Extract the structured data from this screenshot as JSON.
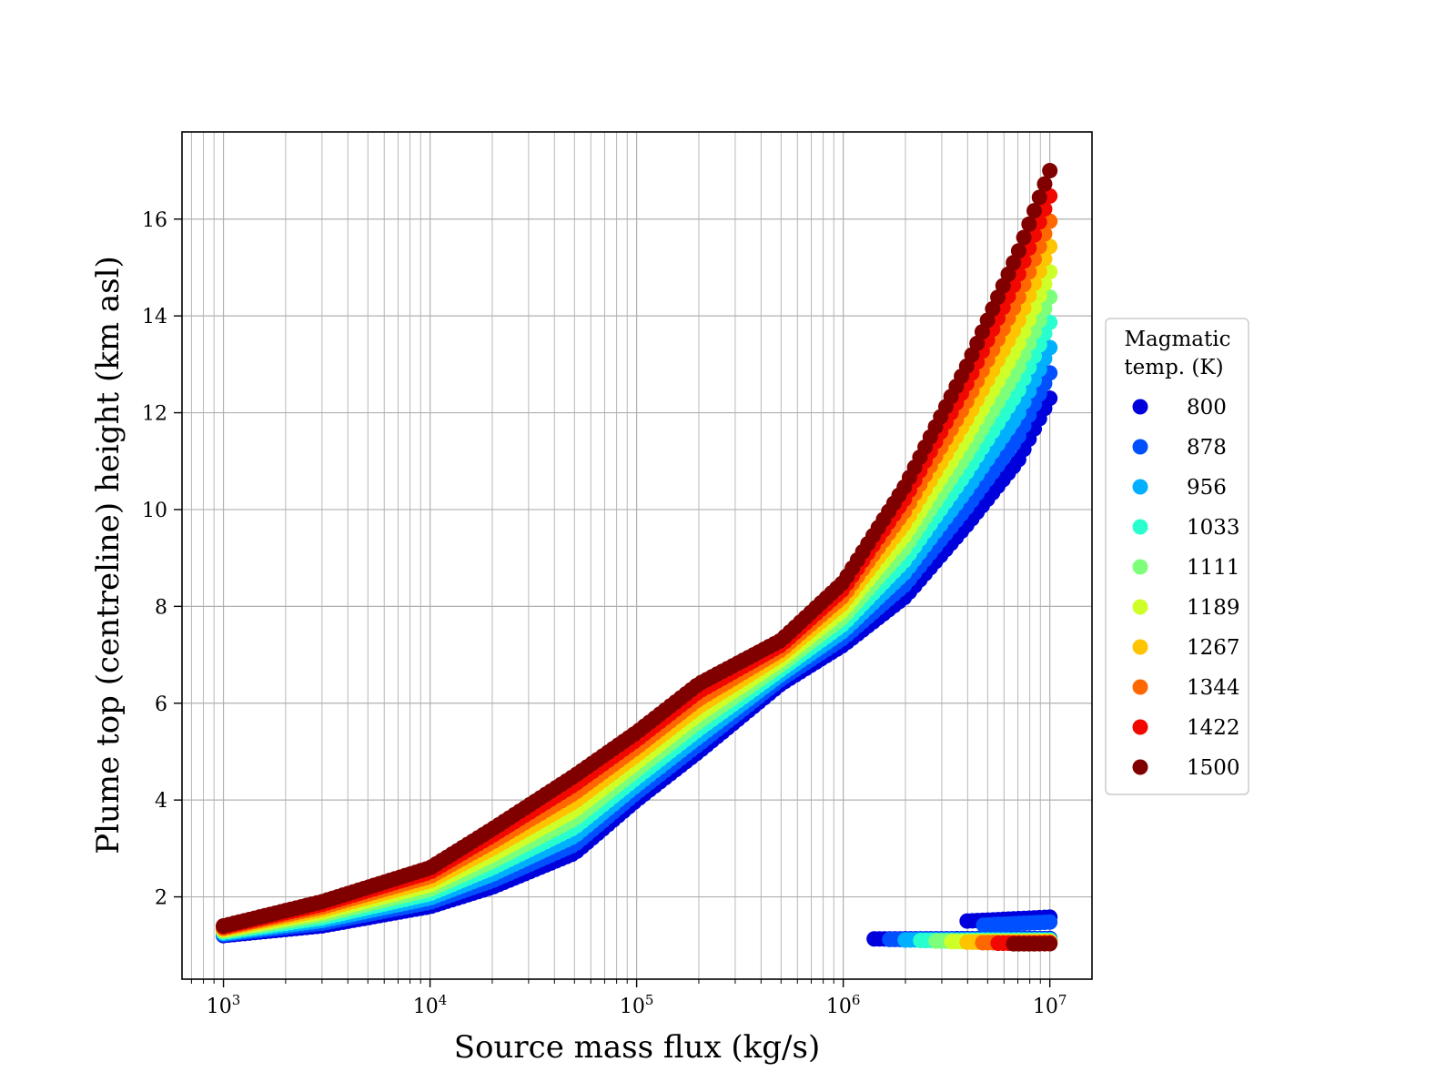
{
  "chart_data": {
    "type": "scatter",
    "title": "",
    "xlabel": "Source mass flux (kg/s)",
    "ylabel": "Plume top (centreline) height (km asl)",
    "xscale": "log",
    "xlim": [
      630,
      16000000
    ],
    "ylim": [
      0.3,
      17.8
    ],
    "grid": true,
    "grid_minor": true,
    "x_ticks": [
      {
        "value": 1000,
        "base": "10",
        "exp": "3"
      },
      {
        "value": 10000,
        "base": "10",
        "exp": "4"
      },
      {
        "value": 100000,
        "base": "10",
        "exp": "5"
      },
      {
        "value": 1000000,
        "base": "10",
        "exp": "6"
      },
      {
        "value": 10000000,
        "base": "10",
        "exp": "7"
      }
    ],
    "y_ticks": [
      2,
      4,
      6,
      8,
      10,
      12,
      14,
      16
    ],
    "legend": {
      "title_lines": [
        "Magmatic",
        "temp. (K)"
      ],
      "placement": "outside right"
    },
    "series": [
      {
        "name": "800",
        "color": "#0000dd",
        "temp": 800
      },
      {
        "name": "878",
        "color": "#0050ff",
        "temp": 878
      },
      {
        "name": "956",
        "color": "#00b0ff",
        "temp": 956
      },
      {
        "name": "1033",
        "color": "#29ffce",
        "temp": 1033
      },
      {
        "name": "1111",
        "color": "#7dff7a",
        "temp": 1111
      },
      {
        "name": "1189",
        "color": "#ceff29",
        "temp": 1189
      },
      {
        "name": "1267",
        "color": "#ffc400",
        "temp": 1267
      },
      {
        "name": "1344",
        "color": "#ff6800",
        "temp": 1344
      },
      {
        "name": "1422",
        "color": "#f10800",
        "temp": 1422
      },
      {
        "name": "1500",
        "color": "#800000",
        "temp": 1500
      }
    ],
    "upper_branch": {
      "x": [
        1000,
        3000,
        10000,
        20000,
        50000,
        100000,
        200000,
        500000,
        1000000,
        2000000,
        4000000,
        7000000,
        10000000
      ],
      "y_800": [
        1.2,
        1.4,
        1.8,
        2.2,
        2.9,
        4.0,
        5.0,
        6.4,
        7.2,
        8.2,
        9.7,
        11.0,
        12.3
      ],
      "y_1500": [
        1.4,
        1.9,
        2.6,
        3.4,
        4.5,
        5.4,
        6.4,
        7.3,
        8.5,
        10.5,
        13.0,
        15.3,
        17.0
      ]
    },
    "lower_branch": {
      "note_values": [
        {
          "x": 1400000,
          "y": 1.13,
          "temp": 800
        },
        {
          "x": 4000000,
          "y": 1.5,
          "temp": 800
        },
        {
          "x": 10000000,
          "y": 1.58,
          "temp": 800
        },
        {
          "x": 10000000,
          "y": 1.18,
          "temp": 1344
        }
      ]
    }
  }
}
